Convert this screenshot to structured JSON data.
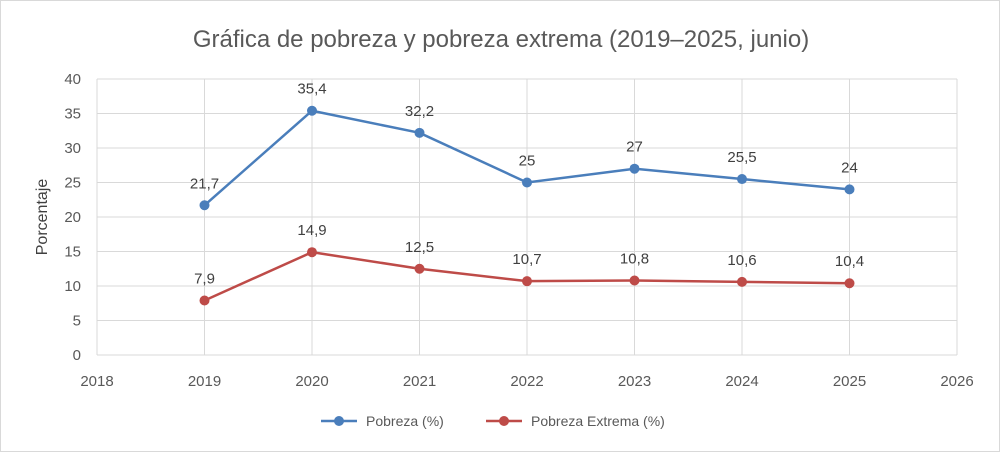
{
  "chart_data": {
    "type": "line",
    "title": "Gráfica de pobreza y pobreza extrema (2019–2025, junio)",
    "xlabel": "",
    "ylabel": "Porcentaje",
    "xlim": [
      2018,
      2026
    ],
    "ylim": [
      0,
      40
    ],
    "xticks": [
      2018,
      2019,
      2020,
      2021,
      2022,
      2023,
      2024,
      2025,
      2026
    ],
    "yticks": [
      0,
      5,
      10,
      15,
      20,
      25,
      30,
      35,
      40
    ],
    "grid": true,
    "legend_position": "bottom",
    "x": [
      2019,
      2020,
      2021,
      2022,
      2023,
      2024,
      2025
    ],
    "series": [
      {
        "name": "Pobreza (%)",
        "color": "#4a7ebb",
        "values": [
          21.7,
          35.4,
          32.2,
          25,
          27,
          25.5,
          24
        ],
        "labels": [
          "21,7",
          "35,4",
          "32,2",
          "25",
          "27",
          "25,5",
          "24"
        ]
      },
      {
        "name": "Pobreza Extrema (%)",
        "color": "#be4b48",
        "values": [
          7.9,
          14.9,
          12.5,
          10.7,
          10.8,
          10.6,
          10.4
        ],
        "labels": [
          "7,9",
          "14,9",
          "12,5",
          "10,7",
          "10,8",
          "10,6",
          "10,4"
        ]
      }
    ]
  }
}
